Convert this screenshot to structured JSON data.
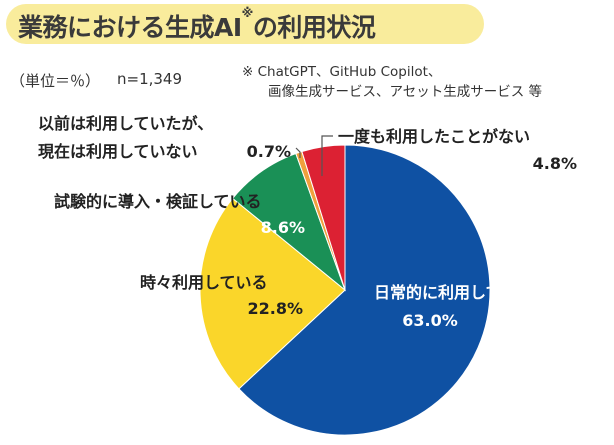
{
  "title": "業務における生成AI",
  "title_mark": "※",
  "title_suffix": "の利用状況",
  "unit_label": "（単位＝％）",
  "sample_size": "n=1,349",
  "footnote_line1": "※ ChatGPT、GitHub Copilot、",
  "footnote_line2": "画像生成サービス、アセット生成サービス 等",
  "colors": {
    "daily": "#0f51a3",
    "sometimes": "#fad62a",
    "trial": "#1a9056",
    "used_before": "#f0a03c",
    "once": "#dc2133",
    "title_band": "#f9ec9c"
  },
  "chart_data": {
    "type": "pie",
    "start": "12 o'clock",
    "direction": "clockwise",
    "slices": [
      {
        "label": "日常的に利用している",
        "value": 63.0,
        "value_label": "63.0%",
        "color": "#0f51a3"
      },
      {
        "label": "時々利用している",
        "value": 22.8,
        "value_label": "22.8%",
        "color": "#fad62a"
      },
      {
        "label": "試験的に導入・検証している",
        "value": 8.6,
        "value_label": "8.6%",
        "color": "#1a9056"
      },
      {
        "label_line1": "以前は利用していたが、",
        "label_line2": "現在は利用していない",
        "value": 0.7,
        "value_label": "0.7%",
        "color": "#f0a03c"
      },
      {
        "label": "一度も利用したことがない",
        "value": 4.8,
        "value_label": "4.8%",
        "color": "#dc2133"
      }
    ]
  }
}
